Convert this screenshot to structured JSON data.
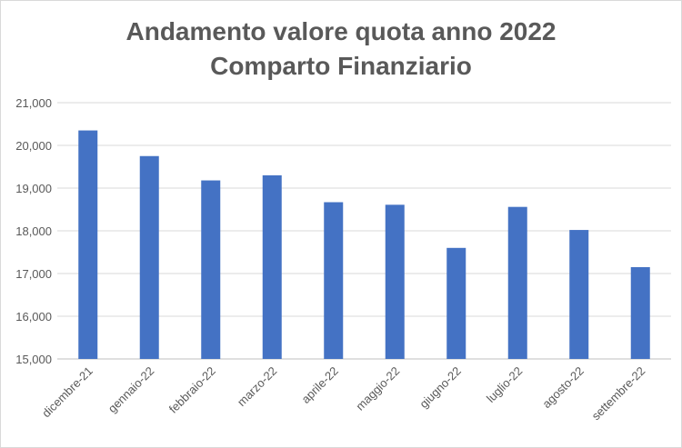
{
  "chart_data": {
    "type": "bar",
    "title_line1": "Andamento valore quota anno 2022",
    "title_line2": "Comparto Finanziario",
    "xlabel": "",
    "ylabel": "",
    "categories": [
      "dicembre-21",
      "gennaio-22",
      "febbraio-22",
      "marzo-22",
      "aprile-22",
      "maggio-22",
      "giugno-22",
      "luglio-22",
      "agosto-22",
      "settembre-22"
    ],
    "values": [
      20.35,
      19.75,
      19.18,
      19.3,
      18.67,
      18.61,
      17.6,
      18.56,
      18.02,
      17.15
    ],
    "ylim": [
      15,
      21
    ],
    "yticks": [
      15,
      16,
      17,
      18,
      19,
      20,
      21
    ],
    "ytick_labels": [
      "15,000",
      "16,000",
      "17,000",
      "18,000",
      "19,000",
      "20,000",
      "21,000"
    ],
    "grid": true,
    "legend": "none",
    "bar_color": "#4472c4",
    "grid_color": "#d9d9d9",
    "axis_color": "#bfbfbf"
  }
}
